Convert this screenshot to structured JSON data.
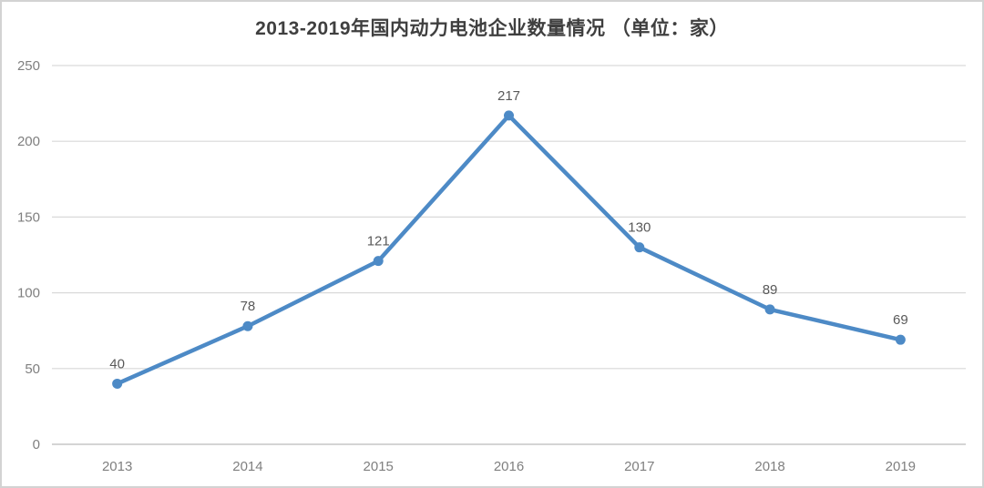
{
  "chart_data": {
    "type": "line",
    "title": "2013-2019年国内动力电池企业数量情况 （单位：家）",
    "categories": [
      "2013",
      "2014",
      "2015",
      "2016",
      "2017",
      "2018",
      "2019"
    ],
    "values": [
      40,
      78,
      121,
      217,
      130,
      89,
      69
    ],
    "xlabel": "",
    "ylabel": "",
    "ylim": [
      0,
      250
    ],
    "yticks": [
      0,
      50,
      100,
      150,
      200,
      250
    ],
    "grid": true,
    "legend": "none",
    "data_labels_shown": true,
    "colors": {
      "line": "#4D8AC6",
      "marker": "#4D8AC6",
      "grid": "#D9D9D9",
      "axis_line": "#C6C6C6",
      "title_text": "#3F3F3F",
      "tick_text": "#7F7F7F",
      "data_label_text": "#595959",
      "background": "#FFFFFF"
    }
  }
}
